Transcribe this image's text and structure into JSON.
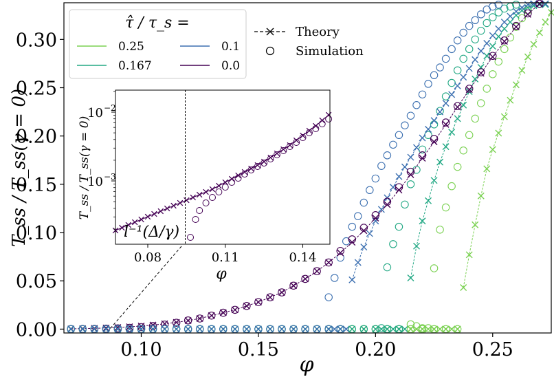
{
  "chart_data": [
    {
      "type": "line",
      "panel": "main",
      "title": "",
      "xlabel": "φ",
      "ylabel": "T_ss / T_ss(γ = 0)",
      "xlim": [
        0.067,
        0.275
      ],
      "ylim": [
        -0.004,
        0.338
      ],
      "xticks": [
        0.1,
        0.15,
        0.2,
        0.25
      ],
      "xtick_labels": [
        "0.10",
        "0.15",
        "0.20",
        "0.25"
      ],
      "yticks": [
        0.0,
        0.05,
        0.1,
        0.15,
        0.2,
        0.25,
        0.3
      ],
      "ytick_labels": [
        "0.00",
        "0.05",
        "0.10",
        "0.15",
        "0.20",
        "0.25",
        "0.30"
      ],
      "grid": false,
      "legend_title": "τ̂ / τ_s =",
      "legend_position": "top-left",
      "series": [
        {
          "name": "0.25",
          "color": "#7ad151",
          "x": [
            0.215,
            0.2175,
            0.22,
            0.2225,
            0.225,
            0.2275,
            0.23,
            0.2325,
            0.235,
            0.2375,
            0.24,
            0.2425,
            0.245,
            0.2475,
            0.25,
            0.2525,
            0.255,
            0.2575,
            0.26,
            0.2625,
            0.265,
            0.2675,
            0.27,
            0.2725,
            0.275
          ],
          "theory": [
            0,
            0,
            0,
            0,
            0,
            0,
            0,
            0,
            0,
            0.043,
            0.077,
            0.108,
            0.138,
            0.166,
            0.186,
            0.203,
            0.22,
            0.237,
            0.253,
            0.268,
            0.282,
            0.295,
            0.307,
            0.318,
            0.328
          ],
          "simulation": [
            0.005,
            0.003,
            0.001,
            0.001,
            0.063,
            0.103,
            0.126,
            0.148,
            0.168,
            0.185,
            0.201,
            0.218,
            0.234,
            0.249,
            0.264,
            0.277,
            0.29,
            0.302,
            0.313,
            0.322,
            0.33,
            null,
            null,
            null,
            null
          ]
        },
        {
          "name": "0.167",
          "color": "#22a884",
          "x": [
            0.2025,
            0.205,
            0.2075,
            0.21,
            0.2125,
            0.215,
            0.2175,
            0.22,
            0.2225,
            0.225,
            0.2275,
            0.23,
            0.2325,
            0.235,
            0.2375,
            0.24,
            0.2425,
            0.245,
            0.2475,
            0.25,
            0.2525,
            0.255,
            0.2575,
            0.26,
            0.2625,
            0.265,
            0.2675,
            0.27,
            0.2725
          ],
          "theory": [
            0,
            0,
            0,
            0,
            0,
            0.053,
            0.086,
            0.112,
            0.133,
            0.154,
            0.173,
            0.189,
            0.204,
            0.218,
            0.232,
            0.246,
            0.259,
            0.271,
            0.283,
            0.293,
            0.303,
            0.311,
            0.318,
            0.325,
            0.33,
            0.333,
            0.335,
            0.336,
            0.336
          ],
          "simulation": [
            0.001,
            0.064,
            0.088,
            0.106,
            0.129,
            0.15,
            0.165,
            0.186,
            0.201,
            0.212,
            0.226,
            0.241,
            0.255,
            0.268,
            0.28,
            0.29,
            0.3,
            0.309,
            0.317,
            0.323,
            0.328,
            0.332,
            0.334,
            0.336,
            null,
            null,
            null,
            null,
            null
          ]
        },
        {
          "name": "0.1",
          "color": "#3b6fb0",
          "x": [
            0.18,
            0.1825,
            0.185,
            0.1875,
            0.19,
            0.1925,
            0.195,
            0.1975,
            0.2,
            0.2025,
            0.205,
            0.2075,
            0.21,
            0.2125,
            0.215,
            0.2175,
            0.22,
            0.2225,
            0.225,
            0.2275,
            0.23,
            0.2325,
            0.235,
            0.2375,
            0.24,
            0.2425,
            0.245,
            0.2475,
            0.25,
            0.2525,
            0.255,
            0.2575,
            0.26,
            0.2625,
            0.265,
            0.2675,
            0.27,
            0.2725
          ],
          "theory": [
            0,
            0,
            0,
            0,
            0.051,
            0.069,
            0.085,
            0.099,
            0.112,
            0.124,
            0.136,
            0.147,
            0.158,
            0.168,
            0.178,
            0.188,
            0.198,
            0.207,
            0.216,
            0.225,
            0.234,
            0.243,
            0.252,
            0.261,
            0.27,
            0.279,
            0.288,
            0.296,
            0.304,
            0.311,
            0.318,
            0.324,
            0.329,
            0.333,
            0.336,
            0.337,
            0.337,
            0.337
          ],
          "simulation": [
            0.033,
            0.053,
            0.074,
            0.091,
            0.106,
            0.117,
            0.131,
            0.144,
            0.156,
            0.169,
            0.18,
            0.191,
            0.201,
            0.211,
            0.221,
            0.232,
            0.243,
            0.254,
            0.263,
            0.271,
            0.28,
            0.29,
            0.299,
            0.307,
            0.314,
            0.32,
            0.326,
            0.331,
            0.334,
            0.336,
            null,
            null,
            null,
            null,
            null,
            null,
            null,
            null
          ]
        },
        {
          "name": "0.0",
          "color": "#440154",
          "x": [
            0.07,
            0.075,
            0.08,
            0.085,
            0.09,
            0.095,
            0.1,
            0.105,
            0.11,
            0.115,
            0.12,
            0.125,
            0.13,
            0.135,
            0.14,
            0.145,
            0.15,
            0.155,
            0.16,
            0.165,
            0.17,
            0.175,
            0.18,
            0.185,
            0.19,
            0.195,
            0.2,
            0.205,
            0.21,
            0.215,
            0.22,
            0.225,
            0.23,
            0.235,
            0.24,
            0.245,
            0.25,
            0.255,
            0.26,
            0.265,
            0.27
          ],
          "theory": [
            0.0003,
            0.0005,
            0.0008,
            0.0012,
            0.0017,
            0.0024,
            0.0032,
            0.0042,
            0.0055,
            0.007,
            0.0088,
            0.011,
            0.014,
            0.017,
            0.02,
            0.024,
            0.028,
            0.033,
            0.038,
            0.045,
            0.052,
            0.06,
            0.069,
            0.079,
            0.09,
            0.102,
            0.115,
            0.129,
            0.144,
            0.16,
            0.177,
            0.194,
            0.212,
            0.23,
            0.248,
            0.265,
            0.282,
            0.298,
            0.313,
            0.326,
            0.337
          ],
          "simulation": [
            0.0001,
            0.0002,
            0.0003,
            0.0005,
            0.0008,
            0.0013,
            0.0021,
            0.0032,
            0.0047,
            0.0066,
            0.009,
            0.011,
            0.014,
            0.017,
            0.02,
            0.024,
            0.028,
            0.033,
            0.038,
            0.045,
            0.052,
            0.06,
            0.069,
            0.081,
            0.093,
            0.105,
            0.118,
            0.132,
            0.147,
            0.163,
            0.18,
            0.197,
            0.214,
            0.231,
            0.249,
            0.266,
            0.283,
            0.299,
            0.314,
            0.327,
            0.337
          ]
        }
      ],
      "legend_markers": [
        {
          "name": "Theory",
          "marker": "x",
          "linestyle": "dashed"
        },
        {
          "name": "Simulation",
          "marker": "o",
          "linestyle": "none"
        }
      ]
    },
    {
      "type": "line",
      "panel": "inset",
      "yscale": "log",
      "xlabel": "φ",
      "ylabel": "T_ss / T_ss(γ = 0)",
      "xlim": [
        0.0675,
        0.1505
      ],
      "ylim_log10": [
        -3.92,
        -1.68
      ],
      "xticks": [
        0.08,
        0.11,
        0.14
      ],
      "xtick_labels": [
        "0.08",
        "0.11",
        "0.14"
      ],
      "yticks_log10": [
        -3,
        -2
      ],
      "ytick_labels": [
        "10",
        "10"
      ],
      "ytick_exponents": [
        "−3",
        "−2"
      ],
      "annotation": "l⁻¹(Δ/γ)",
      "vline_x": 0.0945,
      "series": [
        {
          "name": "0.0 theory",
          "color": "#440154",
          "x": [
            0.0675,
            0.07,
            0.0725,
            0.075,
            0.0775,
            0.08,
            0.0825,
            0.085,
            0.0875,
            0.09,
            0.0925,
            0.095,
            0.0975,
            0.1,
            0.1025,
            0.105,
            0.1075,
            0.11,
            0.1125,
            0.115,
            0.1175,
            0.12,
            0.1225,
            0.125,
            0.1275,
            0.13,
            0.1325,
            0.135,
            0.1375,
            0.14,
            0.1425,
            0.145,
            0.1475,
            0.15
          ],
          "y_log10": [
            -3.72,
            -3.68,
            -3.64,
            -3.6,
            -3.56,
            -3.52,
            -3.48,
            -3.44,
            -3.4,
            -3.36,
            -3.32,
            -3.28,
            -3.24,
            -3.2,
            -3.16,
            -3.12,
            -3.07,
            -3.02,
            -2.97,
            -2.92,
            -2.87,
            -2.82,
            -2.77,
            -2.72,
            -2.66,
            -2.6,
            -2.54,
            -2.48,
            -2.41,
            -2.34,
            -2.27,
            -2.2,
            -2.12,
            -2.04
          ]
        },
        {
          "name": "0.0 simulation",
          "color": "#440154",
          "x": [
            0.0965,
            0.0985,
            0.1,
            0.1025,
            0.105,
            0.1075,
            0.11,
            0.1125,
            0.115,
            0.1175,
            0.12,
            0.1225,
            0.125,
            0.1275,
            0.13,
            0.1325,
            0.135,
            0.1375,
            0.14,
            0.1425,
            0.145,
            0.1475,
            0.15
          ],
          "y_log10": [
            -3.82,
            -3.56,
            -3.43,
            -3.32,
            -3.24,
            -3.16,
            -3.09,
            -3.02,
            -2.96,
            -2.9,
            -2.84,
            -2.79,
            -2.74,
            -2.68,
            -2.62,
            -2.56,
            -2.5,
            -2.44,
            -2.37,
            -2.3,
            -2.24,
            -2.17,
            -2.1
          ]
        }
      ]
    }
  ],
  "legend": {
    "title": "τ̂ / τ_s =",
    "entries": [
      {
        "label": "0.25",
        "color": "#7ad151"
      },
      {
        "label": "0.167",
        "color": "#22a884"
      },
      {
        "label": "0.1",
        "color": "#3b6fb0"
      },
      {
        "label": "0.0",
        "color": "#440154"
      }
    ],
    "marker_entries": [
      {
        "label": "Theory"
      },
      {
        "label": "Simulation"
      }
    ]
  }
}
